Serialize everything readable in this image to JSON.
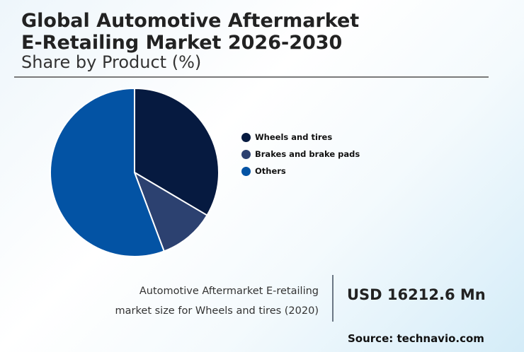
{
  "header": {
    "title_line1": "Global Automotive Aftermarket",
    "title_line2": "E-Retailing Market 2026-2030",
    "subtitle": "Share by Product (%)"
  },
  "legend": [
    {
      "label": "Wheels and tires",
      "color": "#061a40"
    },
    {
      "label": "Brakes and brake pads",
      "color": "#2c4170"
    },
    {
      "label": "Others",
      "color": "#0353a4"
    }
  ],
  "info": {
    "line1": "Automotive Aftermarket E-retailing",
    "line2": "market size for Wheels and tires (2020)",
    "value": "USD 16212.6 Mn"
  },
  "source": "Source: technavio.com",
  "chart_data": {
    "type": "pie",
    "title": "Global Automotive Aftermarket E-Retailing Market 2026-2030",
    "subtitle": "Share by Product (%)",
    "categories": [
      "Wheels and tires",
      "Brakes and brake pads",
      "Others"
    ],
    "values": [
      33.5,
      10.8,
      55.7
    ],
    "colors": [
      "#061a40",
      "#2c4170",
      "#0353a4"
    ],
    "legend_position": "right",
    "start_angle": "12 o'clock, clockwise"
  }
}
